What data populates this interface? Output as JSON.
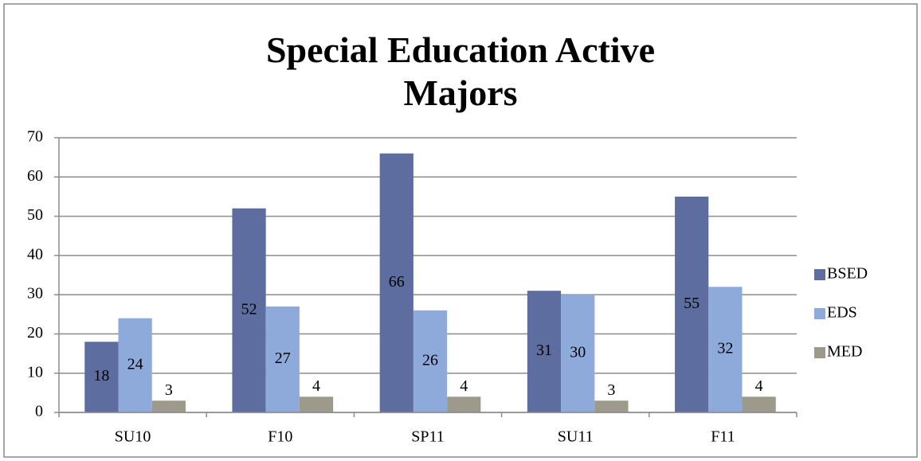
{
  "chart_data": {
    "type": "bar",
    "title": "Special Education Active Majors",
    "categories": [
      "SU10",
      "F10",
      "SP11",
      "SU11",
      "F11"
    ],
    "series": [
      {
        "name": "BSED",
        "color": "#5d6d9f",
        "values": [
          18,
          52,
          66,
          31,
          55
        ]
      },
      {
        "name": "EDS",
        "color": "#8eaadb",
        "values": [
          24,
          27,
          26,
          30,
          32
        ]
      },
      {
        "name": "MED",
        "color": "#9d9a8b",
        "values": [
          3,
          4,
          4,
          3,
          4
        ]
      }
    ],
    "ylim": [
      0,
      70
    ],
    "yticks": [
      0,
      10,
      20,
      30,
      40,
      50,
      60,
      70
    ],
    "grid": true,
    "legend": "right"
  }
}
